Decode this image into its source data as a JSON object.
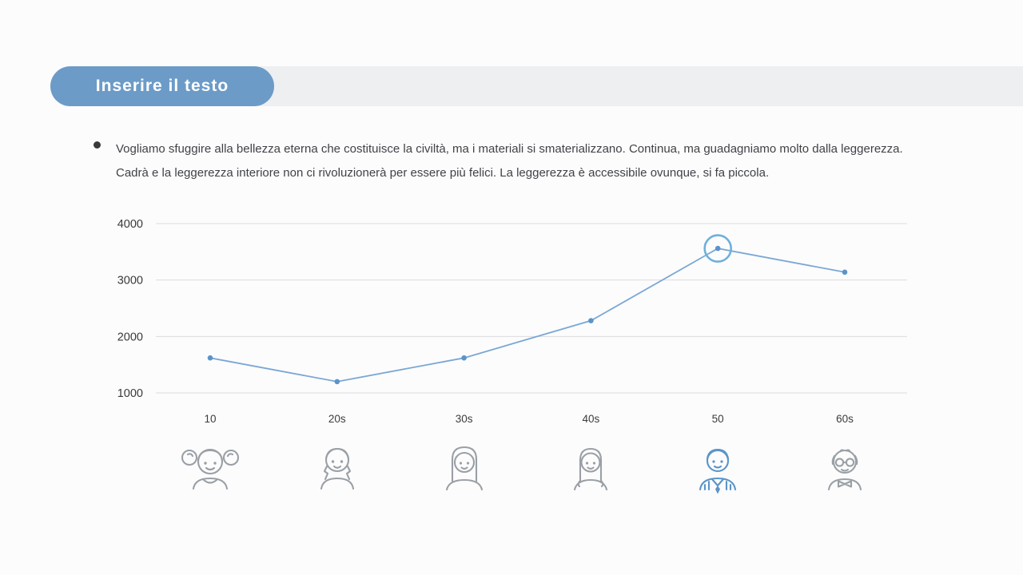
{
  "header": {
    "title": "Inserire il testo"
  },
  "body": {
    "paragraph": "Vogliamo sfuggire alla bellezza eterna che costituisce la civiltà, ma i materiali si smaterializzano. Continua, ma guadagniamo molto dalla leggerezza. Cadrà e la leggerezza interiore non ci rivoluzionerà per essere più felici. La leggerezza è accessibile ovunque, si fa piccola."
  },
  "chart_data": {
    "type": "line",
    "title": "",
    "categories": [
      "10",
      "20s",
      "30s",
      "40s",
      "50",
      "60s"
    ],
    "values": [
      1620,
      1200,
      1620,
      2280,
      3560,
      3140
    ],
    "highlight_index": 4,
    "ylim": [
      1000,
      4000
    ],
    "yticks": [
      4000,
      3000,
      2000,
      1000
    ],
    "grid": true,
    "legend_position": "none",
    "xlabel": "",
    "ylabel": "",
    "line_color": "#7aa7d4",
    "point_color": "#5b94c8",
    "highlight_ring_color": "#6fb0da",
    "grid_color": "#dcdddf",
    "axis_text_color": "#3a3a3a"
  },
  "avatars": [
    {
      "icon": "girl-pigtails-icon",
      "category": "10"
    },
    {
      "icon": "girl-braids-icon",
      "category": "20s"
    },
    {
      "icon": "woman-long-hair-icon",
      "category": "30s"
    },
    {
      "icon": "woman-short-hair-icon",
      "category": "40s"
    },
    {
      "icon": "man-suit-icon",
      "category": "50"
    },
    {
      "icon": "elderly-man-icon",
      "category": "60s"
    }
  ],
  "colors": {
    "accent_pill": "#6c9bc7",
    "header_band": "#edeff1",
    "bullet": "#3a3a3a",
    "avatar_gray": "#9aa0a5",
    "avatar_highlight": "#5b94c8"
  }
}
